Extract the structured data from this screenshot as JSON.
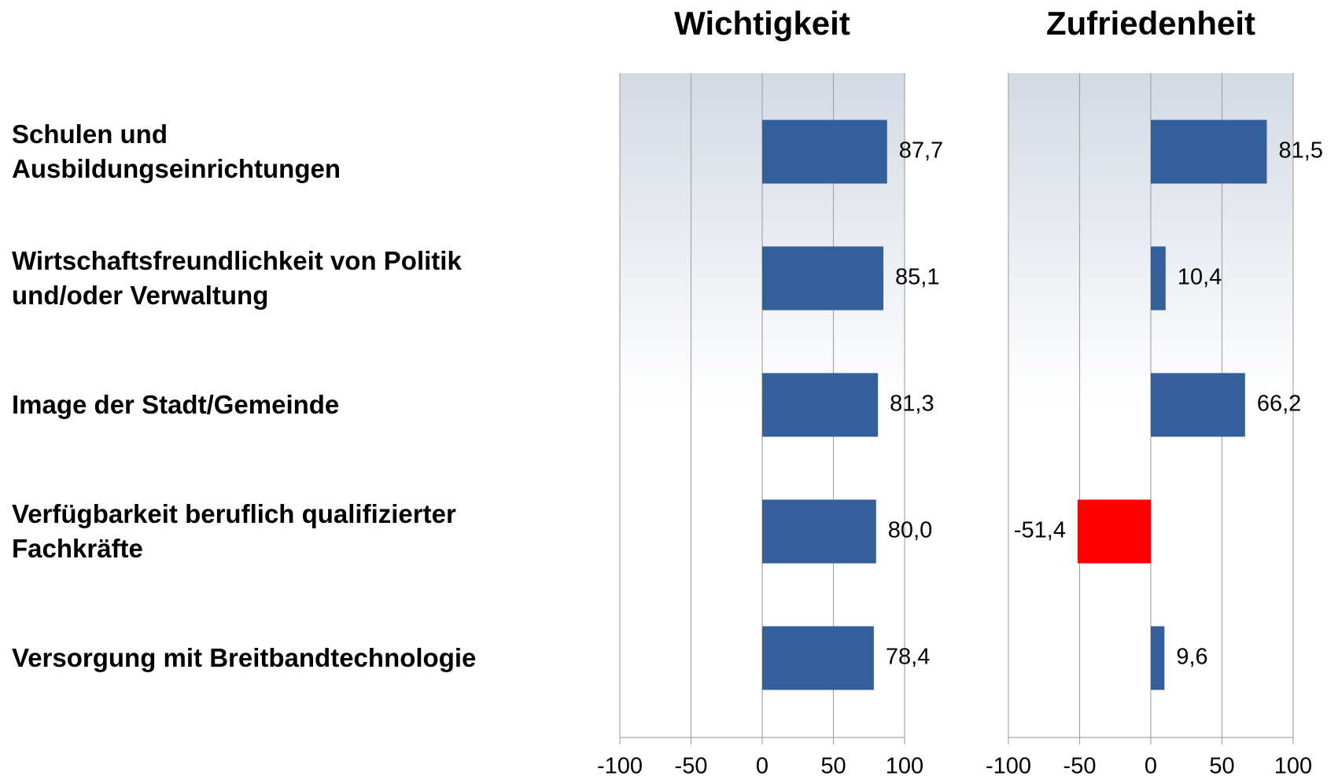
{
  "chart_data": [
    {
      "type": "hbar",
      "title": "Wichtigkeit",
      "categories": [
        "Schulen und\nAusbildungseinrichtungen",
        "Wirtschaftsfreundlichkeit von Politik\nund/oder Verwaltung",
        "Image der Stadt/Gemeinde",
        "Verfügbarkeit beruflich qualifizierter\nFachkräfte",
        "Versorgung mit Breitbandtechnologie"
      ],
      "values": [
        87.7,
        85.1,
        81.3,
        80.0,
        78.4
      ],
      "value_labels": [
        "87,7",
        "85,1",
        "81,3",
        "80,0",
        "78,4"
      ],
      "color": "#335f9a",
      "xlim": [
        -100,
        100
      ],
      "xticks": [
        -100,
        -50,
        0,
        50,
        100
      ],
      "grid": true
    },
    {
      "type": "hbar",
      "title": "Zufriedenheit",
      "values": [
        81.5,
        10.4,
        66.2,
        -51.4,
        9.6
      ],
      "value_labels": [
        "81,5",
        "10,4",
        "66,2",
        "-51,4",
        "9,6"
      ],
      "colors": [
        "#335f9a",
        "#335f9a",
        "#335f9a",
        "#ff0000",
        "#335f9a"
      ],
      "xlim": [
        -100,
        100
      ],
      "xticks": [
        -100,
        -50,
        0,
        50,
        100
      ],
      "grid": true
    }
  ]
}
